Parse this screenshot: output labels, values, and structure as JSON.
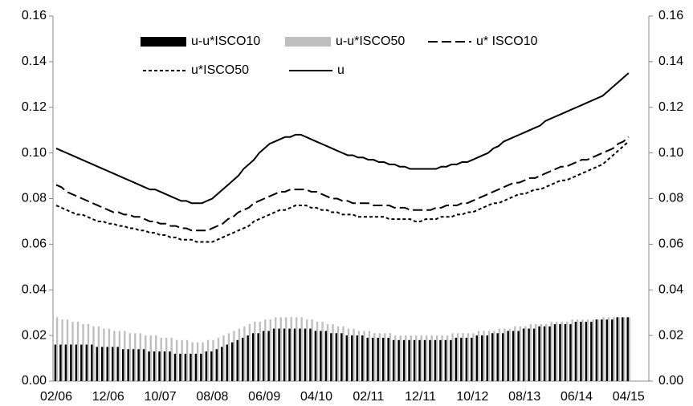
{
  "chart_data": {
    "type": "combo",
    "categories": [
      "02/06",
      null,
      null,
      null,
      null,
      null,
      null,
      null,
      null,
      null,
      "12/06",
      null,
      null,
      null,
      null,
      null,
      null,
      null,
      null,
      null,
      "10/07",
      null,
      null,
      null,
      null,
      null,
      null,
      null,
      null,
      null,
      "08/08",
      null,
      null,
      null,
      null,
      null,
      null,
      null,
      null,
      null,
      "06/09",
      null,
      null,
      null,
      null,
      null,
      null,
      null,
      null,
      null,
      "04/10",
      null,
      null,
      null,
      null,
      null,
      null,
      null,
      null,
      null,
      "02/11",
      null,
      null,
      null,
      null,
      null,
      null,
      null,
      null,
      null,
      "12/11",
      null,
      null,
      null,
      null,
      null,
      null,
      null,
      null,
      null,
      "10/12",
      null,
      null,
      null,
      null,
      null,
      null,
      null,
      null,
      null,
      "08/13",
      null,
      null,
      null,
      null,
      null,
      null,
      null,
      null,
      null,
      "06/14",
      null,
      null,
      null,
      null,
      null,
      null,
      null,
      null,
      null,
      "04/15"
    ],
    "series": [
      {
        "name": "u-u*ISCO50",
        "type": "bar",
        "color": "#bfbfbf",
        "values": [
          0.028,
          0.027,
          0.027,
          0.026,
          0.026,
          0.025,
          0.025,
          0.024,
          0.024,
          0.023,
          0.023,
          0.022,
          0.022,
          0.022,
          0.021,
          0.021,
          0.021,
          0.02,
          0.02,
          0.02,
          0.019,
          0.019,
          0.019,
          0.018,
          0.018,
          0.018,
          0.017,
          0.017,
          0.017,
          0.018,
          0.018,
          0.019,
          0.02,
          0.021,
          0.022,
          0.023,
          0.024,
          0.025,
          0.026,
          0.026,
          0.027,
          0.027,
          0.028,
          0.028,
          0.028,
          0.028,
          0.028,
          0.028,
          0.027,
          0.027,
          0.026,
          0.026,
          0.025,
          0.025,
          0.024,
          0.024,
          0.023,
          0.023,
          0.022,
          0.022,
          0.022,
          0.021,
          0.021,
          0.021,
          0.021,
          0.02,
          0.02,
          0.02,
          0.02,
          0.02,
          0.02,
          0.02,
          0.02,
          0.02,
          0.02,
          0.02,
          0.021,
          0.021,
          0.021,
          0.021,
          0.021,
          0.022,
          0.022,
          0.022,
          0.022,
          0.023,
          0.023,
          0.023,
          0.024,
          0.024,
          0.024,
          0.025,
          0.025,
          0.025,
          0.025,
          0.026,
          0.026,
          0.026,
          0.026,
          0.027,
          0.027,
          0.027,
          0.027,
          0.027,
          0.027,
          0.028,
          0.028,
          0.028,
          0.028,
          0.028,
          0.028
        ]
      },
      {
        "name": "u-u*ISCO10",
        "type": "bar",
        "color": "#000000",
        "values": [
          0.016,
          0.016,
          0.016,
          0.016,
          0.016,
          0.016,
          0.016,
          0.016,
          0.015,
          0.015,
          0.015,
          0.015,
          0.015,
          0.014,
          0.014,
          0.014,
          0.014,
          0.014,
          0.013,
          0.013,
          0.013,
          0.013,
          0.013,
          0.012,
          0.012,
          0.012,
          0.012,
          0.012,
          0.012,
          0.013,
          0.013,
          0.014,
          0.015,
          0.016,
          0.017,
          0.018,
          0.019,
          0.02,
          0.021,
          0.021,
          0.022,
          0.022,
          0.023,
          0.023,
          0.023,
          0.023,
          0.023,
          0.023,
          0.023,
          0.023,
          0.022,
          0.022,
          0.022,
          0.021,
          0.021,
          0.021,
          0.02,
          0.02,
          0.02,
          0.02,
          0.019,
          0.019,
          0.019,
          0.019,
          0.019,
          0.018,
          0.018,
          0.018,
          0.018,
          0.018,
          0.018,
          0.018,
          0.018,
          0.018,
          0.018,
          0.018,
          0.018,
          0.019,
          0.019,
          0.019,
          0.019,
          0.02,
          0.02,
          0.02,
          0.021,
          0.021,
          0.021,
          0.022,
          0.022,
          0.022,
          0.023,
          0.023,
          0.023,
          0.024,
          0.024,
          0.024,
          0.025,
          0.025,
          0.025,
          0.025,
          0.026,
          0.026,
          0.026,
          0.026,
          0.027,
          0.027,
          0.027,
          0.027,
          0.028,
          0.028,
          0.028
        ]
      },
      {
        "name": "u* ISCO10",
        "type": "line",
        "style": "dashed",
        "color": "#000000",
        "values": [
          0.086,
          0.085,
          0.083,
          0.082,
          0.081,
          0.08,
          0.079,
          0.078,
          0.077,
          0.076,
          0.075,
          0.074,
          0.074,
          0.073,
          0.073,
          0.072,
          0.072,
          0.071,
          0.07,
          0.07,
          0.069,
          0.069,
          0.068,
          0.068,
          0.067,
          0.067,
          0.066,
          0.066,
          0.066,
          0.066,
          0.067,
          0.068,
          0.069,
          0.071,
          0.072,
          0.074,
          0.075,
          0.076,
          0.078,
          0.079,
          0.08,
          0.081,
          0.082,
          0.083,
          0.083,
          0.084,
          0.084,
          0.084,
          0.084,
          0.083,
          0.083,
          0.082,
          0.081,
          0.08,
          0.08,
          0.079,
          0.079,
          0.078,
          0.078,
          0.078,
          0.078,
          0.077,
          0.077,
          0.077,
          0.077,
          0.076,
          0.076,
          0.076,
          0.075,
          0.075,
          0.075,
          0.075,
          0.075,
          0.076,
          0.076,
          0.077,
          0.077,
          0.077,
          0.078,
          0.078,
          0.079,
          0.08,
          0.081,
          0.082,
          0.083,
          0.084,
          0.085,
          0.086,
          0.087,
          0.087,
          0.088,
          0.089,
          0.089,
          0.09,
          0.091,
          0.092,
          0.093,
          0.094,
          0.094,
          0.095,
          0.096,
          0.097,
          0.097,
          0.098,
          0.099,
          0.1,
          0.101,
          0.102,
          0.104,
          0.105,
          0.107
        ]
      },
      {
        "name": "u*ISCO50",
        "type": "line",
        "style": "dotted",
        "color": "#000000",
        "values": [
          0.077,
          0.076,
          0.075,
          0.074,
          0.073,
          0.073,
          0.072,
          0.071,
          0.07,
          0.07,
          0.069,
          0.069,
          0.068,
          0.068,
          0.067,
          0.067,
          0.066,
          0.066,
          0.065,
          0.065,
          0.064,
          0.064,
          0.063,
          0.063,
          0.062,
          0.062,
          0.062,
          0.061,
          0.061,
          0.061,
          0.061,
          0.062,
          0.063,
          0.064,
          0.065,
          0.066,
          0.067,
          0.068,
          0.07,
          0.071,
          0.072,
          0.073,
          0.074,
          0.075,
          0.075,
          0.076,
          0.077,
          0.077,
          0.077,
          0.076,
          0.076,
          0.075,
          0.075,
          0.074,
          0.074,
          0.073,
          0.073,
          0.073,
          0.072,
          0.072,
          0.072,
          0.072,
          0.072,
          0.072,
          0.071,
          0.071,
          0.071,
          0.071,
          0.071,
          0.07,
          0.07,
          0.071,
          0.071,
          0.071,
          0.072,
          0.072,
          0.072,
          0.073,
          0.073,
          0.074,
          0.074,
          0.075,
          0.076,
          0.077,
          0.078,
          0.078,
          0.079,
          0.08,
          0.081,
          0.082,
          0.082,
          0.083,
          0.084,
          0.084,
          0.085,
          0.086,
          0.087,
          0.088,
          0.088,
          0.089,
          0.09,
          0.091,
          0.092,
          0.093,
          0.094,
          0.095,
          0.097,
          0.099,
          0.101,
          0.103,
          0.105
        ]
      },
      {
        "name": "u",
        "type": "line",
        "style": "solid",
        "color": "#000000",
        "values": [
          0.102,
          0.101,
          0.1,
          0.099,
          0.098,
          0.097,
          0.096,
          0.095,
          0.094,
          0.093,
          0.092,
          0.091,
          0.09,
          0.089,
          0.088,
          0.087,
          0.086,
          0.085,
          0.084,
          0.084,
          0.083,
          0.082,
          0.081,
          0.08,
          0.079,
          0.079,
          0.078,
          0.078,
          0.078,
          0.079,
          0.08,
          0.082,
          0.084,
          0.086,
          0.088,
          0.09,
          0.093,
          0.095,
          0.097,
          0.1,
          0.102,
          0.104,
          0.105,
          0.106,
          0.107,
          0.107,
          0.108,
          0.108,
          0.107,
          0.106,
          0.105,
          0.104,
          0.103,
          0.102,
          0.101,
          0.1,
          0.099,
          0.099,
          0.098,
          0.098,
          0.097,
          0.097,
          0.096,
          0.096,
          0.095,
          0.095,
          0.094,
          0.094,
          0.093,
          0.093,
          0.093,
          0.093,
          0.093,
          0.093,
          0.094,
          0.094,
          0.095,
          0.095,
          0.096,
          0.096,
          0.097,
          0.098,
          0.099,
          0.1,
          0.102,
          0.103,
          0.105,
          0.106,
          0.107,
          0.108,
          0.109,
          0.11,
          0.111,
          0.112,
          0.114,
          0.115,
          0.116,
          0.117,
          0.118,
          0.119,
          0.12,
          0.121,
          0.122,
          0.123,
          0.124,
          0.125,
          0.127,
          0.129,
          0.131,
          0.133,
          0.135
        ]
      }
    ],
    "legend_order": [
      1,
      0,
      2,
      3,
      4
    ],
    "legend": "top",
    "grid": false,
    "ylim": [
      0,
      0.16
    ],
    "yticks": [
      {
        "value": 0,
        "label": "0.00"
      },
      {
        "value": 0.02,
        "label": "0.02"
      },
      {
        "value": 0.04,
        "label": "0.04"
      },
      {
        "value": 0.06,
        "label": "0.06"
      },
      {
        "value": 0.08,
        "label": "0.08"
      },
      {
        "value": 0.1,
        "label": "0.10"
      },
      {
        "value": 0.12,
        "label": "0.12"
      },
      {
        "value": 0.14,
        "label": "0.14"
      },
      {
        "value": 0.16,
        "label": "0.16"
      }
    ],
    "y2lim": [
      0,
      0.16
    ],
    "y2ticks": [
      {
        "value": 0,
        "label": "0.00"
      },
      {
        "value": 0.02,
        "label": "0.02"
      },
      {
        "value": 0.04,
        "label": "0.04"
      },
      {
        "value": 0.06,
        "label": "0.06"
      },
      {
        "value": 0.08,
        "label": "0.08"
      },
      {
        "value": 0.1,
        "label": "0.10"
      },
      {
        "value": 0.12,
        "label": "0.12"
      },
      {
        "value": 0.14,
        "label": "0.14"
      },
      {
        "value": 0.16,
        "label": "0.16"
      }
    ]
  }
}
